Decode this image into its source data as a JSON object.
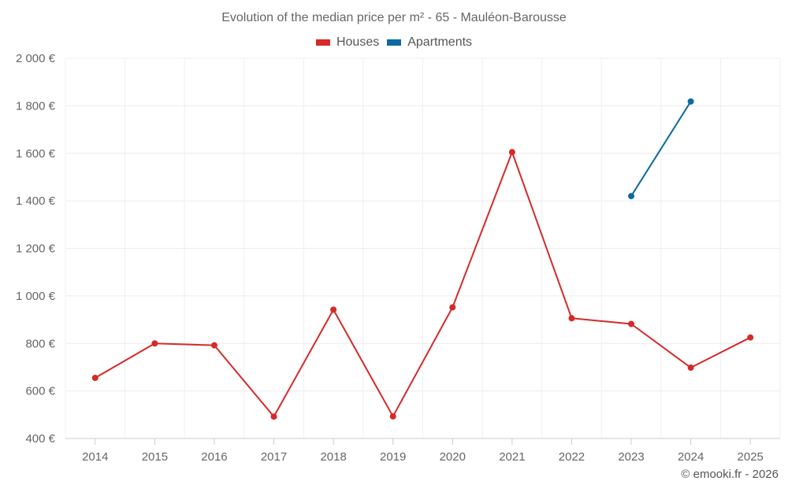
{
  "chart_data": {
    "type": "line",
    "title": "Evolution of the median price per m² - 65 - Mauléon-Barousse",
    "categories": [
      "2014",
      "2015",
      "2016",
      "2017",
      "2018",
      "2019",
      "2020",
      "2021",
      "2022",
      "2023",
      "2024",
      "2025"
    ],
    "series": [
      {
        "name": "Houses",
        "color": "#d42a2a",
        "values": [
          655,
          800,
          792,
          492,
          942,
          493,
          952,
          1605,
          906,
          882,
          698,
          825
        ]
      },
      {
        "name": "Apartments",
        "color": "#0b6aa2",
        "values": [
          null,
          null,
          null,
          null,
          null,
          null,
          null,
          null,
          null,
          1420,
          1818,
          null
        ]
      }
    ],
    "y_ticks": [
      400,
      600,
      800,
      1000,
      1200,
      1400,
      1600,
      1800,
      2000
    ],
    "y_tick_labels": [
      "400 €",
      "600 €",
      "800 €",
      "1 000 €",
      "1 200 €",
      "1 400 €",
      "1 600 €",
      "1 800 €",
      "2 000 €"
    ],
    "ylim": [
      400,
      2000
    ],
    "xlabel": "",
    "ylabel": "",
    "grid": true,
    "legend_position": "top-center"
  },
  "credit": "© emooki.fr - 2026"
}
